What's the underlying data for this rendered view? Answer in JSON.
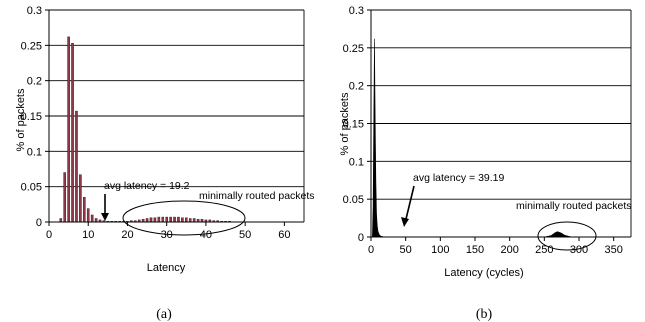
{
  "chart_data": [
    {
      "type": "bar",
      "panel": "(a)",
      "xlabel": "Latency",
      "ylabel": "% of packets",
      "xlim": [
        0,
        65
      ],
      "ylim": [
        0,
        0.3
      ],
      "xticks": [
        0,
        10,
        20,
        30,
        40,
        50,
        60
      ],
      "yticks": [
        "0",
        "0.05",
        "0.1",
        "0.15",
        "0.2",
        "0.25",
        "0.3"
      ],
      "grid": "horizontal",
      "bar_color": "#8b3a4a",
      "x": [
        3,
        4,
        5,
        6,
        7,
        8,
        9,
        10,
        11,
        12,
        13,
        14,
        15,
        16,
        17,
        18,
        19,
        20,
        21,
        22,
        23,
        24,
        25,
        26,
        27,
        28,
        29,
        30,
        31,
        32,
        33,
        34,
        35,
        36,
        37,
        38,
        39,
        40,
        41,
        42,
        43,
        44,
        45,
        46
      ],
      "values": [
        0.005,
        0.07,
        0.262,
        0.253,
        0.157,
        0.067,
        0.035,
        0.019,
        0.01,
        0.005,
        0.003,
        0.002,
        0.001,
        0.001,
        0.001,
        0.001,
        0.001,
        0.001,
        0.002,
        0.002,
        0.003,
        0.004,
        0.005,
        0.006,
        0.006,
        0.007,
        0.007,
        0.007,
        0.007,
        0.007,
        0.007,
        0.006,
        0.006,
        0.005,
        0.005,
        0.004,
        0.004,
        0.003,
        0.003,
        0.002,
        0.002,
        0.001,
        0.001,
        0.001
      ],
      "annotations": [
        {
          "text": "avg latency = 19.2",
          "x": 19.2,
          "y": 0
        },
        {
          "text": "minimally routed packets",
          "x": 32,
          "y": 0.005
        }
      ]
    },
    {
      "type": "area",
      "panel": "(b)",
      "xlabel": "Latency (cycles)",
      "ylabel": "% of packets",
      "xlim": [
        0,
        375
      ],
      "ylim": [
        0,
        0.3
      ],
      "xticks": [
        0,
        50,
        100,
        150,
        200,
        250,
        300,
        350
      ],
      "yticks": [
        "0",
        "0.05",
        "0.1",
        "0.15",
        "0.2",
        "0.25",
        "0.3"
      ],
      "grid": "horizontal",
      "fill_color": "#000000",
      "series": [
        {
          "x": [
            2,
            3,
            4,
            5,
            6,
            7,
            8,
            9,
            10,
            11,
            12,
            13,
            14,
            15,
            16,
            17,
            18,
            20,
            22,
            25,
            30
          ],
          "values": [
            0.0,
            0.04,
            0.155,
            0.262,
            0.16,
            0.075,
            0.03,
            0.015,
            0.008,
            0.005,
            0.003,
            0.002,
            0.001,
            0.001,
            0.001,
            0.0,
            0.0,
            0.0,
            0.0,
            0.0,
            0.0
          ]
        },
        {
          "x": [
            250,
            255,
            260,
            263,
            266,
            269,
            272,
            275,
            278,
            281,
            285,
            290
          ],
          "values": [
            0.0,
            0.001,
            0.002,
            0.004,
            0.006,
            0.007,
            0.006,
            0.005,
            0.003,
            0.002,
            0.001,
            0.0
          ]
        }
      ],
      "annotations": [
        {
          "text": "avg latency = 39.19",
          "x": 39.19,
          "y": 0
        },
        {
          "text": "minimally routed packets",
          "x": 270,
          "y": 0.005
        }
      ]
    }
  ]
}
